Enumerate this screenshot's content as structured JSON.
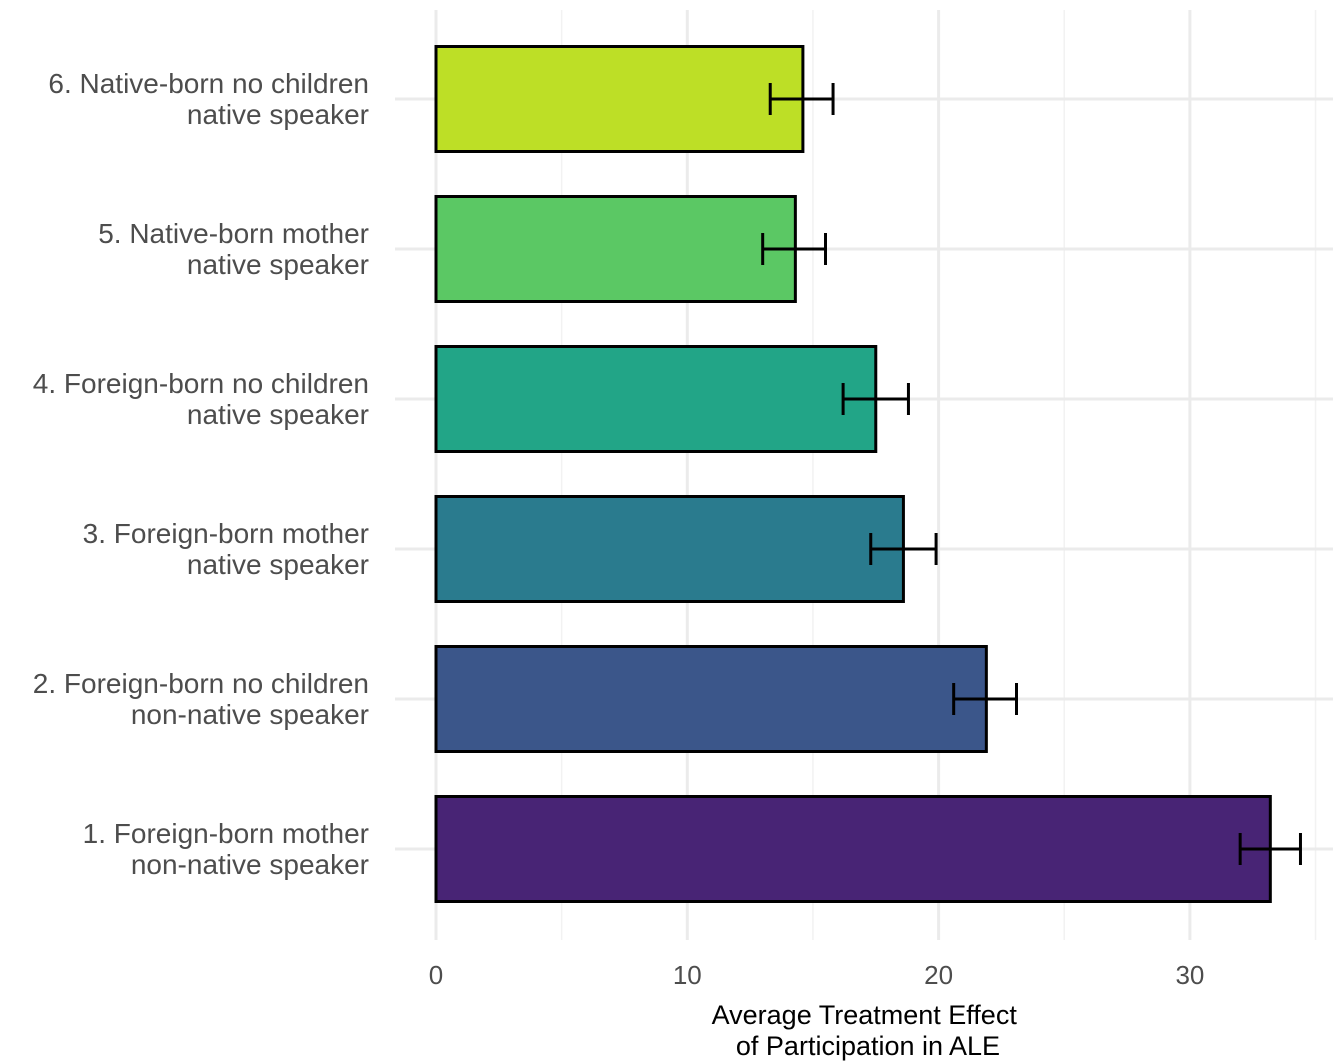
{
  "chart_data": {
    "type": "bar",
    "orientation": "horizontal",
    "categories": [
      [
        "1. Foreign-born mother",
        "non-native speaker"
      ],
      [
        "2. Foreign-born no children",
        "non-native speaker"
      ],
      [
        "3. Foreign-born mother",
        "native speaker"
      ],
      [
        "4. Foreign-born no children",
        "native speaker"
      ],
      [
        "5. Native-born mother",
        "native speaker"
      ],
      [
        "6. Native-born no children",
        "native speaker"
      ]
    ],
    "values": [
      33.2,
      21.9,
      18.6,
      17.5,
      14.3,
      14.6
    ],
    "error_low": [
      32.0,
      20.6,
      17.3,
      16.2,
      13.0,
      13.3
    ],
    "error_high": [
      34.4,
      23.1,
      19.9,
      18.8,
      15.5,
      15.8
    ],
    "colors": [
      "#482475",
      "#3b568a",
      "#2a7b8e",
      "#22a587",
      "#5bc864",
      "#bddf26"
    ],
    "xlabel": [
      "Average Treatment Effect",
      "of Participation in ALE"
    ],
    "ylabel": "",
    "title": "",
    "xlim": [
      0,
      35.7
    ],
    "xticks": [
      0,
      10,
      20,
      30
    ],
    "xtick_labels": [
      "0",
      "10",
      "20",
      "30"
    ],
    "grid": true
  }
}
